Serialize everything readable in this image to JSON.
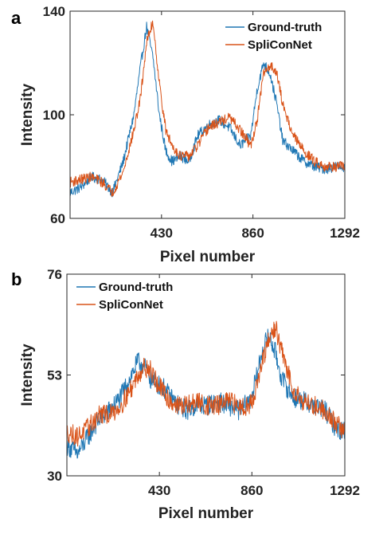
{
  "panels": [
    {
      "label": "a"
    },
    {
      "label": "b"
    }
  ],
  "chart_data": [
    {
      "panel": "a",
      "type": "line",
      "xlabel": "Pixel number",
      "ylabel": "Intensity",
      "xlim": [
        0,
        1292
      ],
      "ylim": [
        60,
        140
      ],
      "xticks": [
        430,
        860,
        1292
      ],
      "yticks": [
        60,
        100,
        140
      ],
      "legend_position": "top-right",
      "colors": {
        "Ground-truth": "#1f77b4",
        "SpliConNet": "#d95319"
      },
      "series": [
        {
          "name": "Ground-truth",
          "color": "#1f77b4",
          "x": [
            0,
            50,
            100,
            150,
            200,
            250,
            300,
            330,
            360,
            390,
            420,
            450,
            480,
            520,
            560,
            600,
            650,
            700,
            750,
            800,
            850,
            880,
            910,
            940,
            970,
            1000,
            1050,
            1100,
            1150,
            1200,
            1250,
            1292
          ],
          "y": [
            70,
            72,
            76,
            75,
            70,
            82,
            100,
            118,
            134,
            122,
            100,
            86,
            82,
            84,
            82,
            92,
            96,
            98,
            95,
            88,
            92,
            110,
            120,
            116,
            105,
            90,
            86,
            82,
            80,
            79,
            80,
            80
          ]
        },
        {
          "name": "SpliConNet",
          "color": "#d95319",
          "x": [
            0,
            50,
            100,
            150,
            200,
            250,
            300,
            330,
            360,
            390,
            420,
            450,
            480,
            520,
            560,
            600,
            650,
            700,
            750,
            800,
            850,
            880,
            910,
            940,
            970,
            1000,
            1050,
            1100,
            1150,
            1200,
            1250,
            1292
          ],
          "y": [
            74,
            75,
            76,
            74,
            70,
            78,
            94,
            106,
            128,
            136,
            112,
            94,
            88,
            84,
            84,
            88,
            95,
            97,
            99,
            94,
            88,
            98,
            116,
            119,
            117,
            104,
            92,
            86,
            82,
            80,
            80,
            80
          ]
        }
      ]
    },
    {
      "panel": "b",
      "type": "line",
      "xlabel": "Pixel number",
      "ylabel": "Intensity",
      "xlim": [
        0,
        1292
      ],
      "ylim": [
        30,
        76
      ],
      "xticks": [
        430,
        860,
        1292
      ],
      "yticks": [
        30,
        53,
        76
      ],
      "legend_position": "top-left",
      "colors": {
        "Ground-truth": "#1f77b4",
        "SpliConNet": "#d95319"
      },
      "series": [
        {
          "name": "Ground-truth",
          "color": "#1f77b4",
          "x": [
            0,
            50,
            100,
            150,
            200,
            250,
            300,
            330,
            360,
            390,
            420,
            450,
            480,
            520,
            560,
            600,
            650,
            700,
            750,
            800,
            850,
            880,
            910,
            940,
            970,
            1000,
            1050,
            1100,
            1150,
            1200,
            1250,
            1292
          ],
          "y": [
            37,
            35,
            39,
            43,
            45,
            48,
            53,
            56,
            55,
            52,
            51,
            50,
            48,
            46,
            45,
            46,
            46,
            47,
            46,
            45,
            47,
            52,
            59,
            62,
            58,
            52,
            48,
            47,
            46,
            45,
            41,
            40
          ]
        },
        {
          "name": "SpliConNet",
          "color": "#d95319",
          "x": [
            0,
            50,
            100,
            150,
            200,
            250,
            300,
            330,
            360,
            390,
            420,
            450,
            480,
            520,
            560,
            600,
            650,
            700,
            750,
            800,
            850,
            880,
            910,
            940,
            970,
            1000,
            1050,
            1100,
            1150,
            1200,
            1250,
            1292
          ],
          "y": [
            40,
            39,
            41,
            44,
            44,
            46,
            50,
            53,
            55,
            54,
            51,
            49,
            47,
            46,
            46,
            47,
            46,
            46,
            47,
            46,
            46,
            50,
            56,
            61,
            64,
            58,
            50,
            47,
            46,
            45,
            42,
            40
          ]
        }
      ]
    }
  ]
}
